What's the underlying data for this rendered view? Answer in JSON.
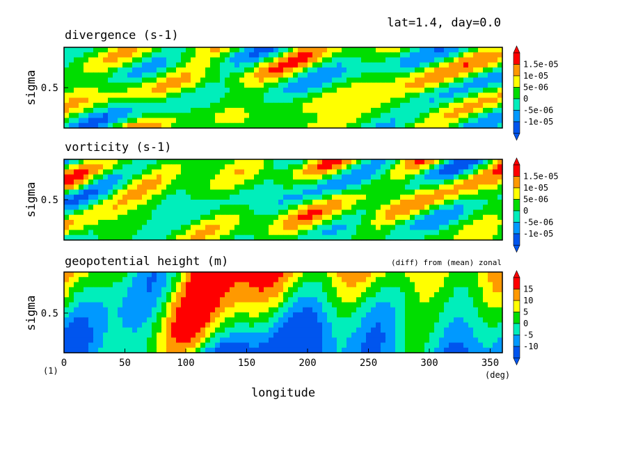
{
  "header": {
    "title": "lat=1.4, day=0.0"
  },
  "chart_data": [
    {
      "type": "heatmap",
      "title": "divergence (s-1)",
      "ylabel": "sigma",
      "yticks": [
        "0.5"
      ],
      "colorbar": {
        "labels": [
          "1.5e-05",
          "1e-05",
          "5e-06",
          "0",
          "-5e-06",
          "-1e-05"
        ],
        "colors": [
          "#ff0000",
          "#ff9900",
          "#ffff00",
          "#00dd00",
          "#00eebb",
          "#0099ff",
          "#0055ee"
        ]
      }
    },
    {
      "type": "heatmap",
      "title": "vorticity (s-1)",
      "ylabel": "sigma",
      "yticks": [
        "0.5"
      ],
      "colorbar": {
        "labels": [
          "1.5e-05",
          "1e-05",
          "5e-06",
          "0",
          "-5e-06",
          "-1e-05"
        ],
        "colors": [
          "#ff0000",
          "#ff9900",
          "#ffff00",
          "#00dd00",
          "#00eebb",
          "#0099ff",
          "#0055ee"
        ]
      }
    },
    {
      "type": "heatmap",
      "title": "geopotential height (m)",
      "subtitle": "(diff) from (mean) zonal",
      "ylabel": "sigma",
      "yticks": [
        "0.5"
      ],
      "xlabel": "longitude",
      "xunit": "(deg)",
      "xticks": [
        "0",
        "50",
        "100",
        "150",
        "200",
        "250",
        "300",
        "350"
      ],
      "xlim": [
        0,
        360
      ],
      "corner_label": "(1)",
      "colorbar": {
        "labels": [
          "15",
          "10",
          "5",
          "0",
          "-5",
          "-10"
        ],
        "colors": [
          "#ff0000",
          "#ff9900",
          "#ffff00",
          "#00dd00",
          "#00eebb",
          "#0099ff",
          "#0055ee"
        ]
      }
    }
  ]
}
